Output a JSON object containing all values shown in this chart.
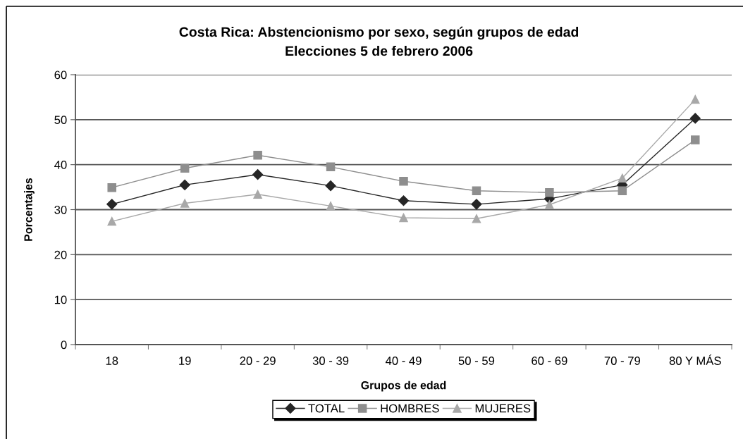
{
  "chart_data": {
    "type": "line",
    "title": "Costa Rica: Abstencionismo por sexo, según grupos de edad",
    "subtitle": "Elecciones 5 de febrero 2006",
    "xlabel": "Grupos de edad",
    "ylabel": "Porcentajes",
    "categories": [
      "18",
      "19",
      "20 - 29",
      "30 - 39",
      "40 - 49",
      "50 - 59",
      "60 - 69",
      "70 - 79",
      "80 Y MÁS"
    ],
    "series": [
      {
        "name": "TOTAL",
        "color": "#262626",
        "marker": "diamond",
        "values": [
          31.2,
          35.5,
          37.8,
          35.3,
          32.0,
          31.2,
          32.4,
          35.5,
          50.3
        ]
      },
      {
        "name": "HOMBRES",
        "color": "#8e8e8e",
        "marker": "square",
        "values": [
          34.9,
          39.2,
          42.1,
          39.5,
          36.3,
          34.2,
          33.8,
          34.2,
          45.5
        ]
      },
      {
        "name": "MUJERES",
        "color": "#a8a8a8",
        "marker": "triangle",
        "values": [
          27.4,
          31.4,
          33.4,
          30.8,
          28.2,
          28.0,
          31.1,
          37.0,
          54.5
        ]
      }
    ],
    "ylim": [
      0,
      60
    ],
    "yticks": [
      0,
      10,
      20,
      30,
      40,
      50,
      60
    ],
    "grid": "y",
    "legend": "bottom",
    "line_style": "solid"
  }
}
